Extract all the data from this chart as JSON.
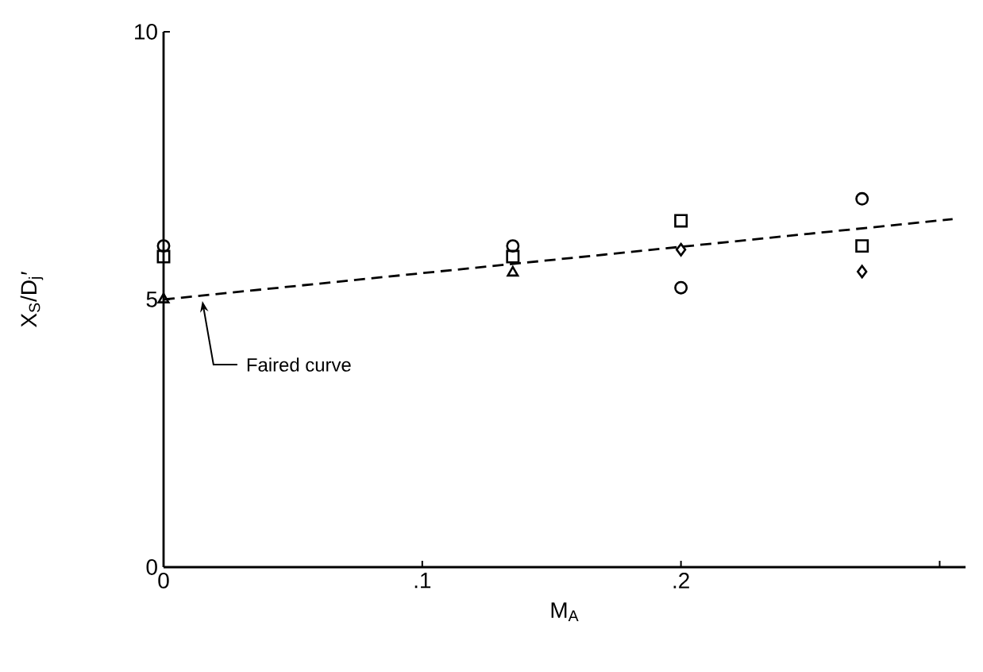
{
  "chart_data": {
    "type": "scatter",
    "xlabel": "M$_{A}$",
    "ylabel": "X$_{S}$/D$_{j}$′",
    "xlim": [
      0,
      0.31
    ],
    "ylim": [
      0,
      10
    ],
    "xticks": [
      0,
      {
        "value": 0.1,
        "label": ".1"
      },
      {
        "value": 0.2,
        "label": ".2"
      },
      {
        "value": 0.3,
        "label": null
      }
    ],
    "yticks": [
      0,
      5,
      10
    ],
    "grid": false,
    "series": [
      {
        "marker": "square",
        "color": "#000000",
        "x": [
          0,
          0.135,
          0.2,
          0.27
        ],
        "values": [
          5.8,
          5.8,
          6.47,
          6.0
        ]
      },
      {
        "marker": "circle",
        "color": "#000000",
        "x": [
          0,
          0.135,
          0.2,
          0.27
        ],
        "values": [
          6.0,
          6.0,
          5.22,
          6.88
        ]
      },
      {
        "marker": "triangle",
        "color": "#000000",
        "x": [
          0,
          0.135
        ],
        "values": [
          5.0,
          5.5
        ]
      },
      {
        "marker": "diamond",
        "color": "#000000",
        "x": [
          0.2,
          0.27
        ],
        "values": [
          5.93,
          5.52
        ]
      },
      {
        "type": "line",
        "marker": "none",
        "line_style": "dashed",
        "color": "#000000",
        "x": [
          0,
          0.305
        ],
        "values": [
          5.0,
          6.5
        ]
      }
    ],
    "annotations": [
      {
        "text": "Faired curve",
        "x": 0.015,
        "y": 4.97
      }
    ]
  }
}
